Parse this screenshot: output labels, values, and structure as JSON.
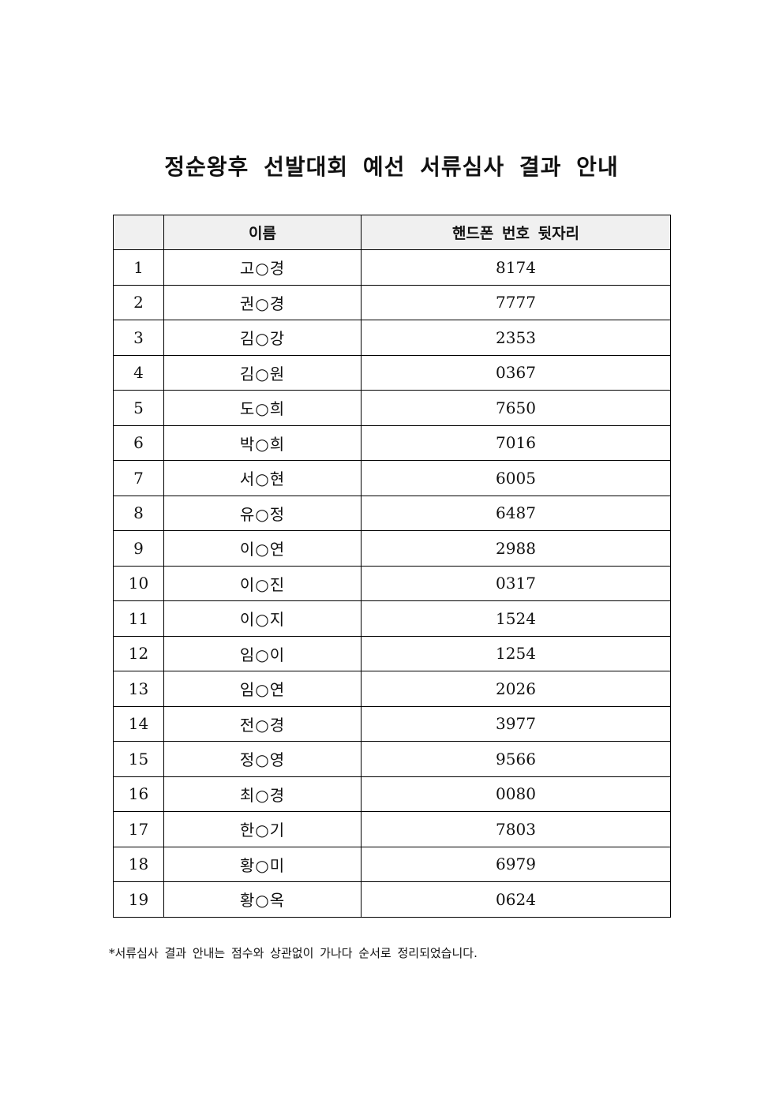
{
  "page": {
    "title": "정순왕후 선발대회 예선 서류심사 결과 안내"
  },
  "table": {
    "headers": {
      "index": "",
      "name": "이름",
      "phone": "핸드폰 번호 뒷자리"
    },
    "rows": [
      {
        "no": "1",
        "name": "고○경",
        "phone": "8174"
      },
      {
        "no": "2",
        "name": "권○경",
        "phone": "7777"
      },
      {
        "no": "3",
        "name": "김○강",
        "phone": "2353"
      },
      {
        "no": "4",
        "name": "김○원",
        "phone": "0367"
      },
      {
        "no": "5",
        "name": "도○희",
        "phone": "7650"
      },
      {
        "no": "6",
        "name": "박○희",
        "phone": "7016"
      },
      {
        "no": "7",
        "name": "서○현",
        "phone": "6005"
      },
      {
        "no": "8",
        "name": "유○정",
        "phone": "6487"
      },
      {
        "no": "9",
        "name": "이○연",
        "phone": "2988"
      },
      {
        "no": "10",
        "name": "이○진",
        "phone": "0317"
      },
      {
        "no": "11",
        "name": "이○지",
        "phone": "1524"
      },
      {
        "no": "12",
        "name": "임○이",
        "phone": "1254"
      },
      {
        "no": "13",
        "name": "임○연",
        "phone": "2026"
      },
      {
        "no": "14",
        "name": "전○경",
        "phone": "3977"
      },
      {
        "no": "15",
        "name": "정○영",
        "phone": "9566"
      },
      {
        "no": "16",
        "name": "최○경",
        "phone": "0080"
      },
      {
        "no": "17",
        "name": "한○기",
        "phone": "7803"
      },
      {
        "no": "18",
        "name": "황○미",
        "phone": "6979"
      },
      {
        "no": "19",
        "name": "황○옥",
        "phone": "0624"
      }
    ]
  },
  "footnote": "*서류심사 결과 안내는 점수와 상관없이 가나다 순서로 정리되었습니다.",
  "colors": {
    "page_bg": "#ffffff",
    "header_bg": "#f0f0f0",
    "border": "#000000",
    "text": "#111111"
  }
}
